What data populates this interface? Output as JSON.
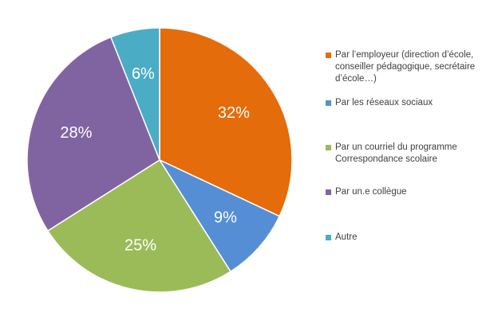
{
  "chart_data": {
    "type": "pie",
    "categories": [
      "Par l’employeur (direction d’école, conseiller pédagogique, secrétaire d’école…)",
      "Par les réseaux sociaux",
      "Par un courriel du programme Correspondance scolaire",
      "Par un.e collègue",
      "Autre"
    ],
    "values": [
      32,
      9,
      25,
      28,
      6
    ],
    "labels": [
      "32%",
      "9%",
      "25%",
      "28%",
      "6%"
    ],
    "colors": [
      "#E46C0A",
      "#558ED5",
      "#9BBB59",
      "#8064A2",
      "#4BACC6"
    ],
    "legend_position": "right",
    "start_angle": "12 o'clock",
    "direction": "clockwise"
  }
}
